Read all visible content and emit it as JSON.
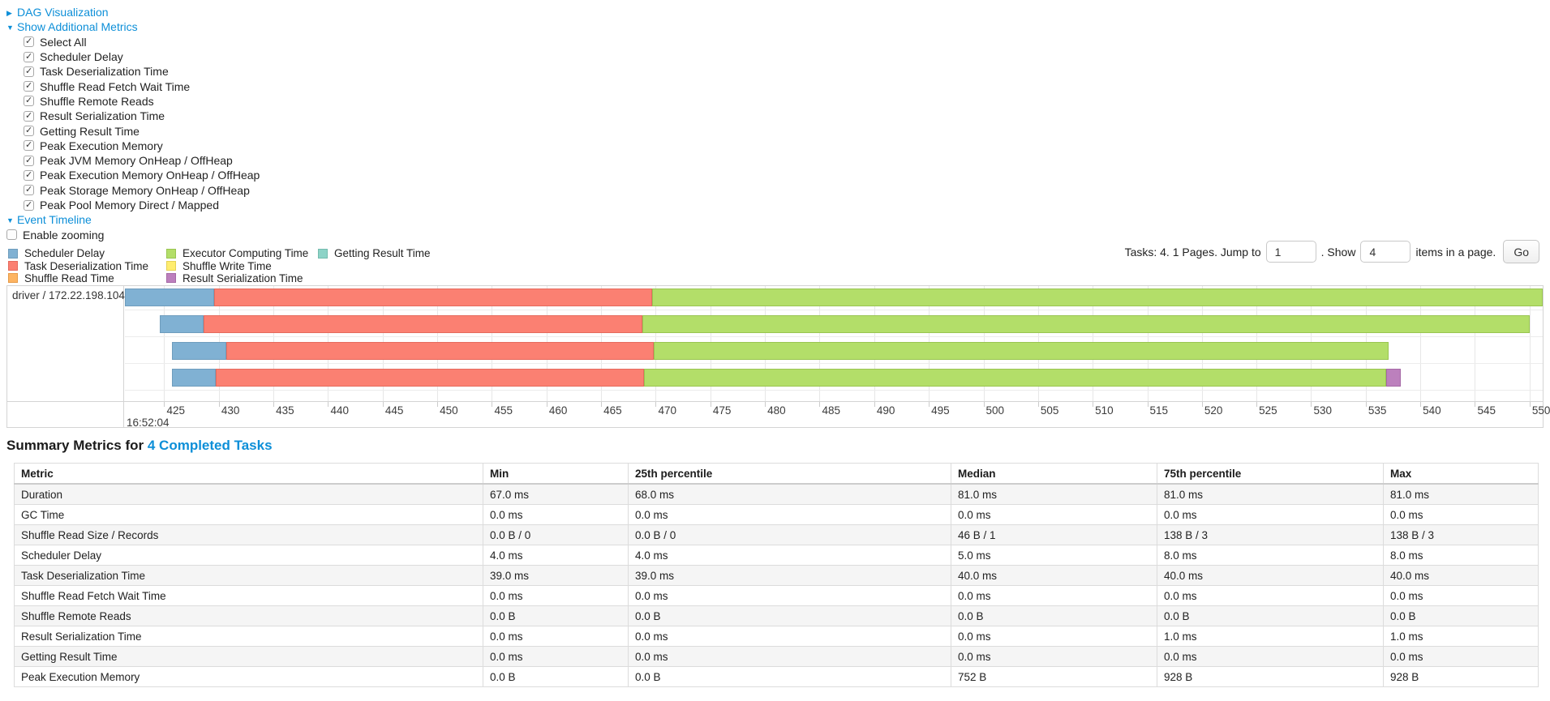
{
  "icons": {
    "collapsed_arrow": "▶",
    "expanded_arrow": "▼",
    "check": "✓"
  },
  "colors": {
    "link_blue": "#0d8fd8"
  },
  "controls": {
    "dag_visualization": {
      "label": "DAG Visualization",
      "state": "collapsed"
    },
    "show_additional_metrics": {
      "label": "Show Additional Metrics",
      "state": "expanded"
    },
    "metric_checkboxes": [
      {
        "label": "Select All",
        "checked": true
      },
      {
        "label": "Scheduler Delay",
        "checked": true
      },
      {
        "label": "Task Deserialization Time",
        "checked": true
      },
      {
        "label": "Shuffle Read Fetch Wait Time",
        "checked": true
      },
      {
        "label": "Shuffle Remote Reads",
        "checked": true
      },
      {
        "label": "Result Serialization Time",
        "checked": true
      },
      {
        "label": "Getting Result Time",
        "checked": true
      },
      {
        "label": "Peak Execution Memory",
        "checked": true
      },
      {
        "label": "Peak JVM Memory OnHeap / OffHeap",
        "checked": true
      },
      {
        "label": "Peak Execution Memory OnHeap / OffHeap",
        "checked": true
      },
      {
        "label": "Peak Storage Memory OnHeap / OffHeap",
        "checked": true
      },
      {
        "label": "Peak Pool Memory Direct / Mapped",
        "checked": true
      }
    ],
    "event_timeline": {
      "label": "Event Timeline",
      "state": "expanded"
    },
    "enable_zooming": {
      "label": "Enable zooming",
      "checked": false
    }
  },
  "pagination": {
    "tasks_text": "Tasks: 4. 1 Pages. Jump to",
    "jump_input_value": "1",
    "show_text": ". Show",
    "show_input_value": "4",
    "items_text": "items in a page.",
    "go_label": "Go"
  },
  "chart_data": {
    "type": "timeline-gantt",
    "executor_group": "driver / 172.22.198.104",
    "x_axis": {
      "sub_label": "16:52:04",
      "unit": "milliseconds after 16:52:04",
      "tick_step_ms": 5,
      "domain_ms": [
        421.4,
        551.2
      ],
      "ticks": [
        425,
        430,
        435,
        440,
        445,
        450,
        455,
        460,
        465,
        470,
        475,
        480,
        485,
        490,
        495,
        500,
        505,
        510,
        515,
        520,
        525,
        530,
        535,
        540,
        545,
        550
      ]
    },
    "series": [
      {
        "key": "scheduler_delay",
        "label": "Scheduler Delay",
        "color": "#80B1D3",
        "border": "#6f9dbd"
      },
      {
        "key": "task_deserialization",
        "label": "Task Deserialization Time",
        "color": "#FB8072",
        "border": "#e56a5d"
      },
      {
        "key": "shuffle_read",
        "label": "Shuffle Read Time",
        "color": "#FDB462",
        "border": "#e69a48"
      },
      {
        "key": "executor_computing",
        "label": "Executor Computing Time",
        "color": "#B3DE69",
        "border": "#99c551"
      },
      {
        "key": "shuffle_write",
        "label": "Shuffle Write Time",
        "color": "#FFED6F",
        "border": "#e5d254"
      },
      {
        "key": "result_serialization",
        "label": "Result Serialization Time",
        "color": "#BC80BD",
        "border": "#a569a6"
      },
      {
        "key": "getting_result",
        "label": "Getting Result Time",
        "color": "#8DD3C7",
        "border": "#74bcae"
      }
    ],
    "legend_columns": [
      [
        "scheduler_delay",
        "task_deserialization",
        "shuffle_read"
      ],
      [
        "executor_computing",
        "shuffle_write",
        "result_serialization"
      ],
      [
        "getting_result"
      ]
    ],
    "tasks": [
      {
        "row": 1,
        "segments": [
          {
            "series": "scheduler_delay",
            "start_ms": 421.4,
            "end_ms": 429.6
          },
          {
            "series": "task_deserialization",
            "start_ms": 429.6,
            "end_ms": 469.7
          },
          {
            "series": "executor_computing",
            "start_ms": 469.7,
            "end_ms": 551.2
          }
        ]
      },
      {
        "row": 2,
        "segments": [
          {
            "series": "scheduler_delay",
            "start_ms": 424.6,
            "end_ms": 428.6
          },
          {
            "series": "task_deserialization",
            "start_ms": 428.6,
            "end_ms": 468.8
          },
          {
            "series": "executor_computing",
            "start_ms": 468.8,
            "end_ms": 550.0
          }
        ]
      },
      {
        "row": 3,
        "segments": [
          {
            "series": "scheduler_delay",
            "start_ms": 425.7,
            "end_ms": 430.7
          },
          {
            "series": "task_deserialization",
            "start_ms": 430.7,
            "end_ms": 469.8
          },
          {
            "series": "executor_computing",
            "start_ms": 469.8,
            "end_ms": 537.1
          }
        ]
      },
      {
        "row": 4,
        "segments": [
          {
            "series": "scheduler_delay",
            "start_ms": 425.7,
            "end_ms": 429.7
          },
          {
            "series": "task_deserialization",
            "start_ms": 429.7,
            "end_ms": 468.9
          },
          {
            "series": "executor_computing",
            "start_ms": 468.9,
            "end_ms": 536.9
          },
          {
            "series": "result_serialization",
            "start_ms": 536.9,
            "end_ms": 538.2
          }
        ]
      }
    ]
  },
  "summary": {
    "heading_prefix": "Summary Metrics for",
    "heading_link": "4 Completed Tasks",
    "table": {
      "headers": [
        "Metric",
        "Min",
        "25th percentile",
        "Median",
        "75th percentile",
        "Max"
      ],
      "rows": [
        [
          "Duration",
          "67.0 ms",
          "68.0 ms",
          "81.0 ms",
          "81.0 ms",
          "81.0 ms"
        ],
        [
          "GC Time",
          "0.0 ms",
          "0.0 ms",
          "0.0 ms",
          "0.0 ms",
          "0.0 ms"
        ],
        [
          "Shuffle Read Size / Records",
          "0.0 B / 0",
          "0.0 B / 0",
          "46 B / 1",
          "138 B / 3",
          "138 B / 3"
        ],
        [
          "Scheduler Delay",
          "4.0 ms",
          "4.0 ms",
          "5.0 ms",
          "8.0 ms",
          "8.0 ms"
        ],
        [
          "Task Deserialization Time",
          "39.0 ms",
          "39.0 ms",
          "40.0 ms",
          "40.0 ms",
          "40.0 ms"
        ],
        [
          "Shuffle Read Fetch Wait Time",
          "0.0 ms",
          "0.0 ms",
          "0.0 ms",
          "0.0 ms",
          "0.0 ms"
        ],
        [
          "Shuffle Remote Reads",
          "0.0 B",
          "0.0 B",
          "0.0 B",
          "0.0 B",
          "0.0 B"
        ],
        [
          "Result Serialization Time",
          "0.0 ms",
          "0.0 ms",
          "0.0 ms",
          "1.0 ms",
          "1.0 ms"
        ],
        [
          "Getting Result Time",
          "0.0 ms",
          "0.0 ms",
          "0.0 ms",
          "0.0 ms",
          "0.0 ms"
        ],
        [
          "Peak Execution Memory",
          "0.0 B",
          "0.0 B",
          "752 B",
          "928 B",
          "928 B"
        ]
      ]
    }
  }
}
